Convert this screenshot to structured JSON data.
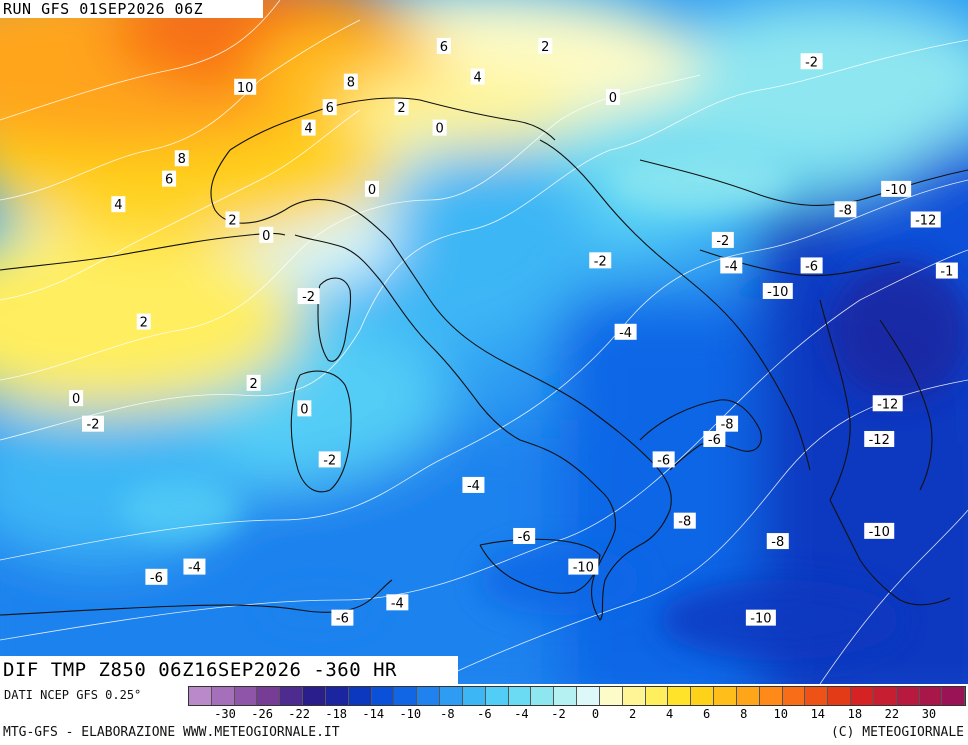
{
  "header": {
    "run_label": "RUN GFS 01SEP2026 06Z"
  },
  "title": {
    "text": "DIF TMP Z850 06Z16SEP2026 -360 HR"
  },
  "source": {
    "text": "DATI NCEP GFS 0.25°"
  },
  "footer": {
    "left": "MTG-GFS - ELABORAZIONE WWW.METEOGIORNALE.IT",
    "right": "(C) METEOGIORNALE"
  },
  "scale": {
    "colors": [
      "#b989c9",
      "#a56fb9",
      "#8f55a8",
      "#773d96",
      "#4e2c8f",
      "#2a1d8c",
      "#1b25a0",
      "#0c38c0",
      "#0a50d8",
      "#1166e6",
      "#1f82ee",
      "#2d9cf2",
      "#3db6f5",
      "#52cdf6",
      "#6adbf2",
      "#8ee6f0",
      "#b5f0f2",
      "#dcf8f8",
      "#fdfbc8",
      "#fff597",
      "#ffee5e",
      "#ffe32a",
      "#ffd21a",
      "#ffbe1a",
      "#ffa51a",
      "#ff8a1a",
      "#f86e18",
      "#ee5216",
      "#e33a18",
      "#d62222",
      "#c71e32",
      "#b8193e",
      "#a9164a",
      "#9a1356"
    ],
    "labels": [
      "-30",
      "-26",
      "-22",
      "-18",
      "-14",
      "-10",
      "-8",
      "-6",
      "-4",
      "-2",
      "0",
      "2",
      "4",
      "6",
      "8",
      "10",
      "14",
      "18",
      "22",
      "30"
    ]
  },
  "contour_labels": [
    {
      "text": "10",
      "lon": 6.2,
      "lat": 47.0
    },
    {
      "text": "8",
      "lon": 8.7,
      "lat": 47.1
    },
    {
      "text": "6",
      "lon": 10.9,
      "lat": 47.8
    },
    {
      "text": "2",
      "lon": 13.3,
      "lat": 47.8
    },
    {
      "text": "-2",
      "lon": 19.6,
      "lat": 47.5
    },
    {
      "text": "4",
      "lon": 11.7,
      "lat": 47.2
    },
    {
      "text": "6",
      "lon": 8.2,
      "lat": 46.6
    },
    {
      "text": "2",
      "lon": 9.9,
      "lat": 46.6
    },
    {
      "text": "0",
      "lon": 14.9,
      "lat": 46.8
    },
    {
      "text": "4",
      "lon": 7.7,
      "lat": 46.2
    },
    {
      "text": "0",
      "lon": 10.8,
      "lat": 46.2
    },
    {
      "text": "8",
      "lon": 4.7,
      "lat": 45.6
    },
    {
      "text": "6",
      "lon": 4.4,
      "lat": 45.2
    },
    {
      "text": "0",
      "lon": 9.2,
      "lat": 45.0
    },
    {
      "text": "-10",
      "lon": 21.6,
      "lat": 45.0
    },
    {
      "text": "-8",
      "lon": 20.4,
      "lat": 44.6
    },
    {
      "text": "4",
      "lon": 3.2,
      "lat": 44.7
    },
    {
      "text": "2",
      "lon": 5.9,
      "lat": 44.4
    },
    {
      "text": "-12",
      "lon": 22.3,
      "lat": 44.4
    },
    {
      "text": "0",
      "lon": 6.7,
      "lat": 44.1
    },
    {
      "text": "-2",
      "lon": 17.5,
      "lat": 44.0
    },
    {
      "text": "-4",
      "lon": 17.7,
      "lat": 43.5
    },
    {
      "text": "-6",
      "lon": 19.6,
      "lat": 43.5
    },
    {
      "text": "-2",
      "lon": 14.6,
      "lat": 43.6
    },
    {
      "text": "-1",
      "lon": 22.8,
      "lat": 43.4
    },
    {
      "text": "-10",
      "lon": 18.8,
      "lat": 43.0
    },
    {
      "text": "-2",
      "lon": 7.7,
      "lat": 42.9
    },
    {
      "text": "2",
      "lon": 3.8,
      "lat": 42.4
    },
    {
      "text": "-4",
      "lon": 15.2,
      "lat": 42.2
    },
    {
      "text": "2",
      "lon": 6.4,
      "lat": 41.2
    },
    {
      "text": "0",
      "lon": 2.2,
      "lat": 40.9
    },
    {
      "text": "-12",
      "lon": 21.4,
      "lat": 40.8
    },
    {
      "text": "0",
      "lon": 7.6,
      "lat": 40.7
    },
    {
      "text": "-2",
      "lon": 2.6,
      "lat": 40.4
    },
    {
      "text": "-8",
      "lon": 17.6,
      "lat": 40.4
    },
    {
      "text": "-6",
      "lon": 17.3,
      "lat": 40.1
    },
    {
      "text": "-12",
      "lon": 21.2,
      "lat": 40.1
    },
    {
      "text": "-2",
      "lon": 8.2,
      "lat": 39.7
    },
    {
      "text": "-6",
      "lon": 16.1,
      "lat": 39.7
    },
    {
      "text": "-4",
      "lon": 11.6,
      "lat": 39.2
    },
    {
      "text": "-8",
      "lon": 16.6,
      "lat": 38.5
    },
    {
      "text": "-6",
      "lon": 12.8,
      "lat": 38.2
    },
    {
      "text": "-10",
      "lon": 21.2,
      "lat": 38.3
    },
    {
      "text": "-8",
      "lon": 18.8,
      "lat": 38.1
    },
    {
      "text": "-4",
      "lon": 5.0,
      "lat": 37.6
    },
    {
      "text": "-10",
      "lon": 14.2,
      "lat": 37.6
    },
    {
      "text": "-6",
      "lon": 4.1,
      "lat": 37.4
    },
    {
      "text": "-4",
      "lon": 9.8,
      "lat": 36.9
    },
    {
      "text": "-6",
      "lon": 8.5,
      "lat": 36.6
    },
    {
      "text": "-10",
      "lon": 18.4,
      "lat": 36.6
    }
  ]
}
